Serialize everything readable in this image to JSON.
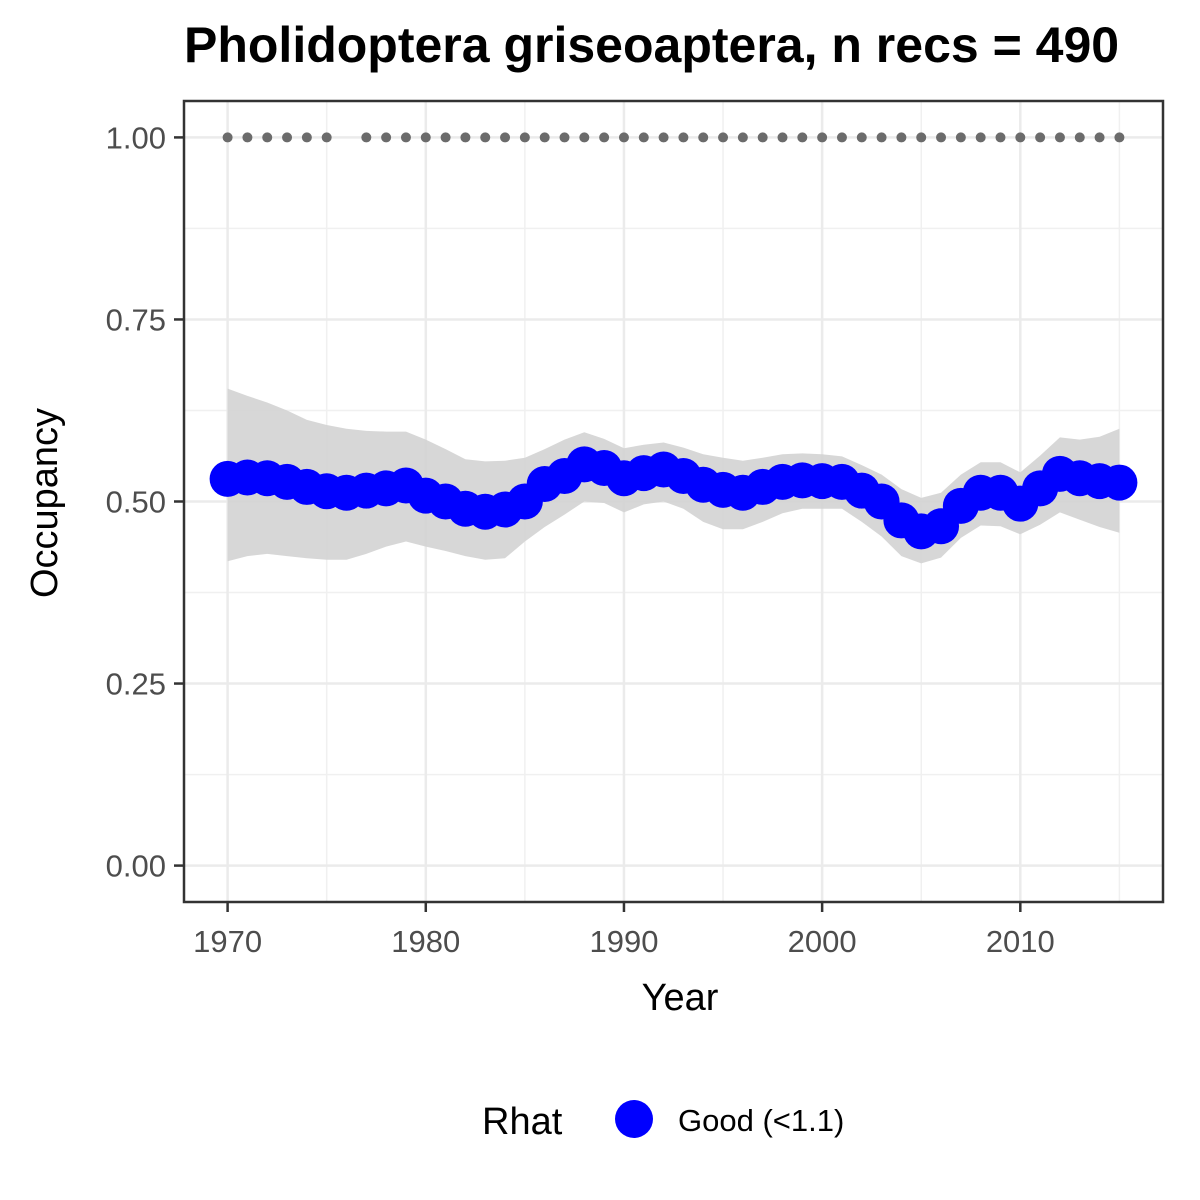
{
  "chart_data": {
    "type": "line",
    "title": "Pholidoptera griseoaptera, n recs = 490",
    "xlabel": "Year",
    "ylabel": "Occupancy",
    "xlim": [
      1967.8,
      2017.2
    ],
    "ylim": [
      -0.05,
      1.05
    ],
    "xticks": [
      1970,
      1980,
      1990,
      2000,
      2010
    ],
    "xtick_labels": [
      "1970",
      "1980",
      "1990",
      "2000",
      "2010"
    ],
    "yticks": [
      0,
      0.25,
      0.5,
      0.75,
      1.0
    ],
    "ytick_labels": [
      "0.00",
      "0.25",
      "0.50",
      "0.75",
      "1.00"
    ],
    "grid": true,
    "series": [
      {
        "kind": "points-line",
        "color": "#0000ff",
        "x": [
          1970,
          1971,
          1972,
          1973,
          1974,
          1975,
          1976,
          1977,
          1978,
          1979,
          1980,
          1981,
          1982,
          1983,
          1984,
          1985,
          1986,
          1987,
          1988,
          1989,
          1990,
          1991,
          1992,
          1993,
          1994,
          1995,
          1996,
          1997,
          1998,
          1999,
          2000,
          2001,
          2002,
          2003,
          2004,
          2005,
          2006,
          2007,
          2008,
          2009,
          2010,
          2011,
          2012,
          2013,
          2014,
          2015
        ],
        "y": [
          0.531,
          0.533,
          0.532,
          0.527,
          0.52,
          0.514,
          0.512,
          0.515,
          0.518,
          0.522,
          0.508,
          0.5,
          0.49,
          0.486,
          0.489,
          0.5,
          0.524,
          0.535,
          0.551,
          0.546,
          0.532,
          0.539,
          0.544,
          0.535,
          0.523,
          0.516,
          0.512,
          0.52,
          0.527,
          0.529,
          0.528,
          0.527,
          0.515,
          0.5,
          0.474,
          0.459,
          0.466,
          0.494,
          0.512,
          0.512,
          0.497,
          0.518,
          0.538,
          0.532,
          0.528,
          0.526
        ]
      },
      {
        "kind": "ribbon",
        "color": "#d3d3d3",
        "x": [
          1970,
          1971,
          1972,
          1973,
          1974,
          1975,
          1976,
          1977,
          1978,
          1979,
          1980,
          1981,
          1982,
          1983,
          1984,
          1985,
          1986,
          1987,
          1988,
          1989,
          1990,
          1991,
          1992,
          1993,
          1994,
          1995,
          1996,
          1997,
          1998,
          1999,
          2000,
          2001,
          2002,
          2003,
          2004,
          2005,
          2006,
          2007,
          2008,
          2009,
          2010,
          2011,
          2012,
          2013,
          2014,
          2015
        ],
        "lower": [
          0.418,
          0.425,
          0.428,
          0.425,
          0.422,
          0.42,
          0.42,
          0.428,
          0.438,
          0.445,
          0.438,
          0.432,
          0.425,
          0.42,
          0.422,
          0.445,
          0.465,
          0.482,
          0.5,
          0.498,
          0.485,
          0.496,
          0.5,
          0.49,
          0.472,
          0.462,
          0.462,
          0.472,
          0.484,
          0.49,
          0.49,
          0.49,
          0.472,
          0.452,
          0.425,
          0.415,
          0.423,
          0.45,
          0.467,
          0.466,
          0.455,
          0.468,
          0.485,
          0.475,
          0.465,
          0.457
        ],
        "upper": [
          0.655,
          0.645,
          0.636,
          0.625,
          0.612,
          0.605,
          0.6,
          0.597,
          0.596,
          0.596,
          0.585,
          0.572,
          0.558,
          0.555,
          0.556,
          0.56,
          0.572,
          0.585,
          0.595,
          0.586,
          0.573,
          0.578,
          0.581,
          0.574,
          0.565,
          0.56,
          0.556,
          0.56,
          0.565,
          0.566,
          0.565,
          0.562,
          0.55,
          0.537,
          0.517,
          0.505,
          0.512,
          0.537,
          0.554,
          0.554,
          0.54,
          0.563,
          0.588,
          0.585,
          0.589,
          0.6
        ]
      },
      {
        "kind": "points",
        "color": "#6b6b6b",
        "x": [
          1970,
          1971,
          1972,
          1973,
          1974,
          1975,
          1977,
          1978,
          1979,
          1980,
          1981,
          1982,
          1983,
          1984,
          1985,
          1986,
          1987,
          1988,
          1989,
          1990,
          1991,
          1992,
          1993,
          1994,
          1995,
          1996,
          1997,
          1998,
          1999,
          2000,
          2001,
          2002,
          2003,
          2004,
          2005,
          2006,
          2007,
          2008,
          2009,
          2010,
          2011,
          2012,
          2013,
          2014,
          2015
        ],
        "y": [
          1,
          1,
          1,
          1,
          1,
          1,
          1,
          1,
          1,
          1,
          1,
          1,
          1,
          1,
          1,
          1,
          1,
          1,
          1,
          1,
          1,
          1,
          1,
          1,
          1,
          1,
          1,
          1,
          1,
          1,
          1,
          1,
          1,
          1,
          1,
          1,
          1,
          1,
          1,
          1,
          1,
          1,
          1,
          1,
          1
        ]
      }
    ],
    "legend": {
      "title": "Rhat",
      "placement": "bottom",
      "entries": [
        {
          "label": "Good (<1.1)",
          "color": "#0000ff"
        }
      ]
    }
  }
}
